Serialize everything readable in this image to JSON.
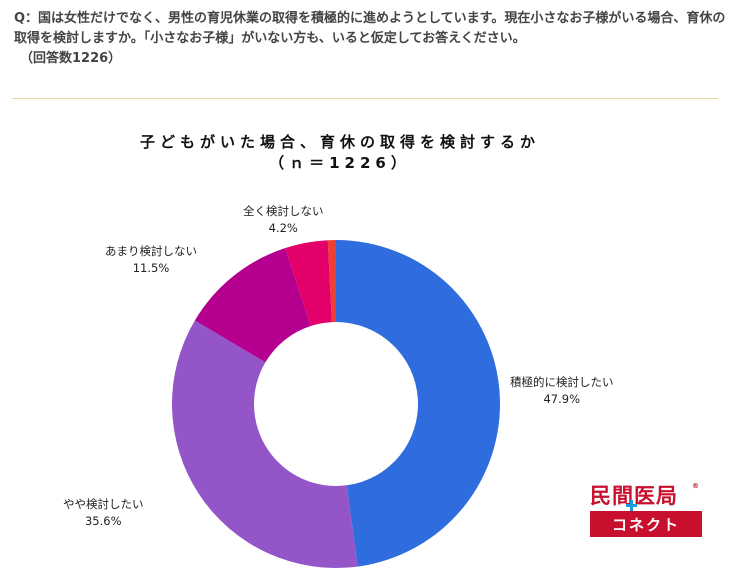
{
  "question": {
    "text": "Q：国は女性だけでなく、男性の育児休業の取得を積極的に進めようとしています。現在小さなお子様がいる場合、育休の取得を検討しますか。「小さなお子様」がいない方も、いると仮定してお答えください。",
    "count": "（回答数1226）"
  },
  "chart_data": {
    "type": "pie",
    "title": "子どもがいた場合、育休の取得を検討するか",
    "subtitle": "（ｎ＝1226）",
    "slices": [
      {
        "label": "積極的に検討したい",
        "value": 47.9,
        "value_label": "47.9%",
        "color": "#2f6ddf"
      },
      {
        "label": "やや検討したい",
        "value": 35.6,
        "value_label": "35.6%",
        "color": "#9455c9"
      },
      {
        "label": "あまり検討しない",
        "value": 11.5,
        "value_label": "11.5%",
        "color": "#b5008f"
      },
      {
        "label": "全く検討しない",
        "value": 4.2,
        "value_label": "4.2%",
        "color": "#e3006a"
      },
      {
        "label": "",
        "value": 0.8,
        "value_label": "",
        "color": "#ef3e33"
      }
    ]
  },
  "logo": {
    "top_text": "民間医局",
    "registered": "®",
    "bottom_text": "コネクト"
  }
}
